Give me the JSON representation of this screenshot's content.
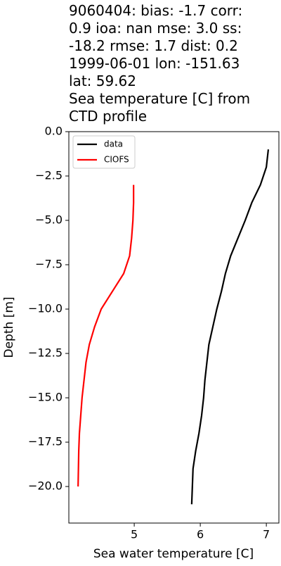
{
  "chart_data": {
    "type": "line",
    "title": [
      "9060404: bias: -1.7  corr:",
      "0.9  ioa: nan  mse: 3.0  ss:",
      "-18.2  rmse: 1.7  dist: 0.2",
      "1999-06-01 lon: -151.63",
      "lat: 59.62",
      "Sea temperature [C] from",
      "CTD profile"
    ],
    "x_label": "Sea water temperature [C]",
    "y_label": "Depth [m]",
    "series": [
      {
        "name": "data",
        "color": "#000000",
        "x": [
          7.03,
          7.0,
          6.91,
          6.78,
          6.68,
          6.57,
          6.46,
          6.38,
          6.32,
          6.25,
          6.19,
          6.13,
          6.1,
          6.07,
          6.05,
          6.02,
          5.98,
          5.93,
          5.89,
          5.88,
          5.87
        ],
        "values": [
          -1,
          -2,
          -3,
          -4,
          -5,
          -6,
          -7,
          -8,
          -9,
          -10,
          -11,
          -12,
          -13,
          -14,
          -15,
          -16,
          -17,
          -18,
          -19,
          -20,
          -21
        ]
      },
      {
        "name": "CIOFS",
        "color": "#ff0000",
        "x": [
          4.99,
          4.99,
          4.98,
          4.96,
          4.93,
          4.84,
          4.67,
          4.5,
          4.4,
          4.32,
          4.27,
          4.24,
          4.21,
          4.19,
          4.17,
          4.16,
          4.155,
          4.15
        ],
        "values": [
          -3,
          -4,
          -5,
          -6,
          -7,
          -8,
          -9,
          -10,
          -11,
          -12,
          -13,
          -14,
          -15,
          -16,
          -17,
          -18,
          -19,
          -20
        ]
      }
    ],
    "xlim": [
      4.01,
      7.19
    ],
    "xticks": [
      5,
      6,
      7
    ],
    "ylim": [
      -22.06,
      0.0
    ],
    "yticks": [
      {
        "value": 0.0,
        "label": "0.0"
      },
      {
        "value": -2.5,
        "label": "−2.5"
      },
      {
        "value": -5.0,
        "label": "−5.0"
      },
      {
        "value": -7.5,
        "label": "−7.5"
      },
      {
        "value": -10.0,
        "label": "−10.0"
      },
      {
        "value": -12.5,
        "label": "−12.5"
      },
      {
        "value": -15.0,
        "label": "−15.0"
      },
      {
        "value": -17.5,
        "label": "−17.5"
      },
      {
        "value": -20.0,
        "label": "−20.0"
      }
    ],
    "legend": "upper left"
  }
}
